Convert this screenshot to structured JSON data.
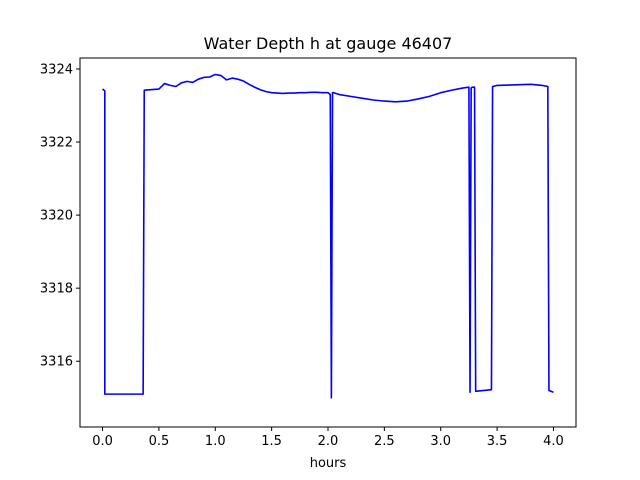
{
  "chart_data": {
    "type": "line",
    "title": "Water Depth h at gauge 46407",
    "xlabel": "hours",
    "ylabel": "",
    "xlim": [
      -0.2,
      4.2
    ],
    "ylim": [
      3314.2,
      3324.3
    ],
    "xticks": [
      0.0,
      0.5,
      1.0,
      1.5,
      2.0,
      2.5,
      3.0,
      3.5,
      4.0
    ],
    "xtick_labels": [
      "0.0",
      "0.5",
      "1.0",
      "1.5",
      "2.0",
      "2.5",
      "3.0",
      "3.5",
      "4.0"
    ],
    "yticks": [
      3316,
      3318,
      3320,
      3322,
      3324
    ],
    "ytick_labels": [
      "3316",
      "3318",
      "3320",
      "3322",
      "3324"
    ],
    "grid": false,
    "series": [
      {
        "color": "#0000ff",
        "x": [
          0.0,
          0.02,
          0.02,
          0.36,
          0.37,
          0.5,
          0.55,
          0.6,
          0.65,
          0.7,
          0.75,
          0.8,
          0.85,
          0.9,
          0.95,
          1.0,
          1.05,
          1.1,
          1.15,
          1.2,
          1.25,
          1.3,
          1.35,
          1.4,
          1.45,
          1.5,
          1.55,
          1.6,
          1.65,
          1.7,
          1.75,
          1.8,
          1.85,
          1.9,
          1.95,
          2.0,
          2.02,
          2.03,
          2.04,
          2.05,
          2.1,
          2.2,
          2.3,
          2.4,
          2.5,
          2.6,
          2.7,
          2.8,
          2.9,
          3.0,
          3.1,
          3.2,
          3.25,
          3.26,
          3.27,
          3.28,
          3.3,
          3.31,
          3.32,
          3.45,
          3.46,
          3.5,
          3.6,
          3.7,
          3.8,
          3.9,
          3.95,
          3.96,
          4.0
        ],
        "y": [
          3323.45,
          3323.4,
          3315.1,
          3315.1,
          3323.42,
          3323.45,
          3323.6,
          3323.55,
          3323.52,
          3323.62,
          3323.66,
          3323.63,
          3323.72,
          3323.77,
          3323.78,
          3323.85,
          3323.82,
          3323.7,
          3323.75,
          3323.72,
          3323.67,
          3323.58,
          3323.5,
          3323.43,
          3323.38,
          3323.35,
          3323.34,
          3323.33,
          3323.34,
          3323.34,
          3323.35,
          3323.35,
          3323.36,
          3323.36,
          3323.35,
          3323.35,
          3323.3,
          3315.0,
          3323.35,
          3323.35,
          3323.3,
          3323.25,
          3323.2,
          3323.15,
          3323.12,
          3323.1,
          3323.12,
          3323.18,
          3323.25,
          3323.35,
          3323.42,
          3323.48,
          3323.5,
          3315.15,
          3323.48,
          3323.5,
          3323.5,
          3315.18,
          3315.18,
          3315.22,
          3323.52,
          3323.55,
          3323.56,
          3323.57,
          3323.58,
          3323.55,
          3323.52,
          3315.2,
          3315.15
        ]
      }
    ]
  }
}
